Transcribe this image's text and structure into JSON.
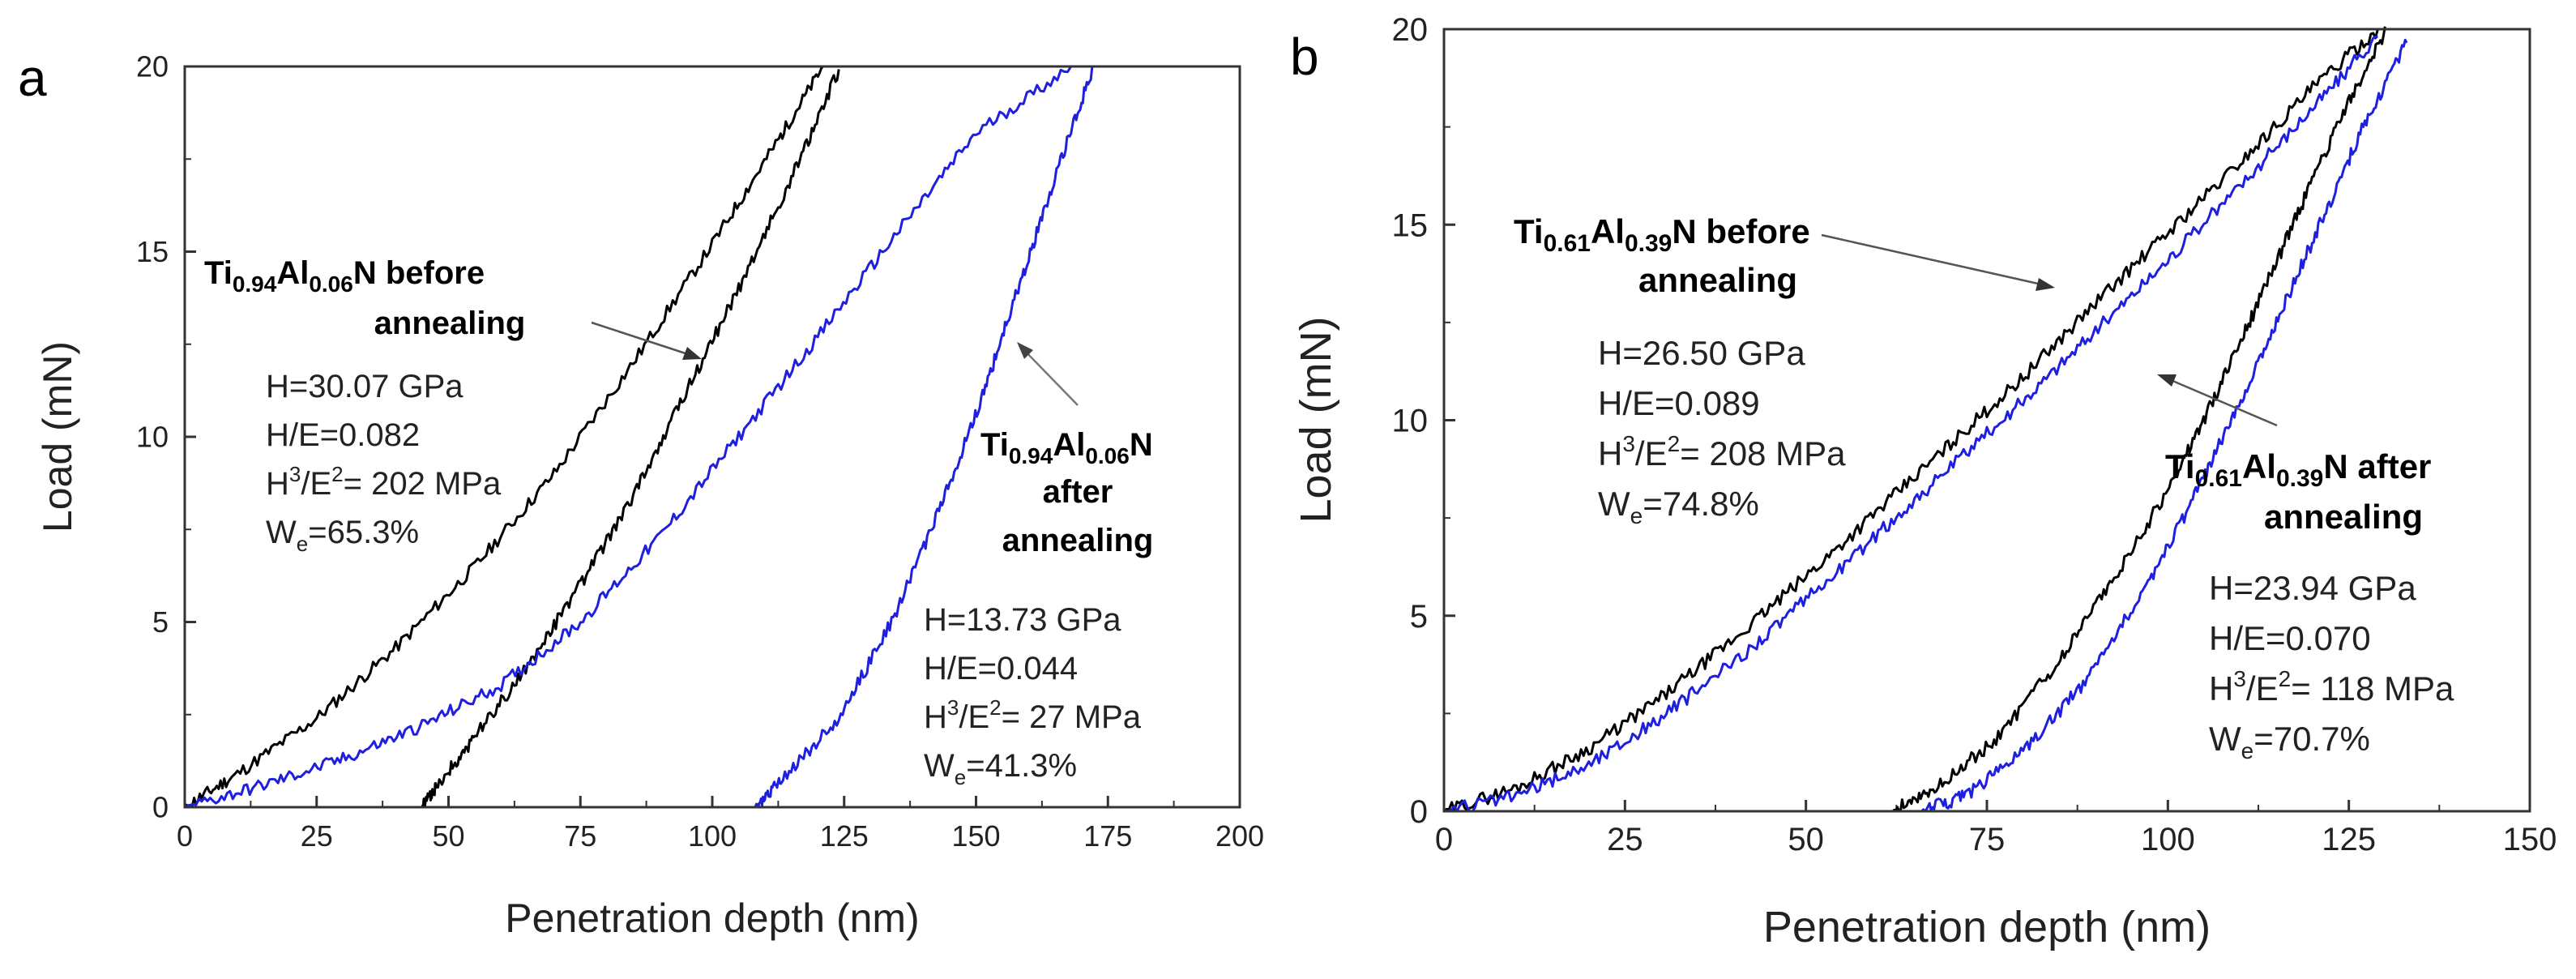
{
  "figure": {
    "panels": [
      {
        "panel_label": "a",
        "xlabel": "Penetration depth (nm)",
        "ylabel": "Load (mN)"
      },
      {
        "panel_label": "b",
        "xlabel": "Penetration depth (nm)",
        "ylabel": "Load (mN)"
      }
    ]
  },
  "chart_data": [
    {
      "type": "line",
      "panel_label": "a",
      "xlabel": "Penetration depth (nm)",
      "ylabel": "Load (mN)",
      "xlim": [
        0,
        200
      ],
      "ylim": [
        0,
        20
      ],
      "xticks": [
        0,
        25,
        50,
        75,
        100,
        125,
        150,
        175,
        200
      ],
      "yticks": [
        0,
        5,
        10,
        15,
        20
      ],
      "series": [
        {
          "name": "Ti0.94Al0.06N before annealing",
          "color": "#000000",
          "loading": [
            [
              0,
              0
            ],
            [
              10,
              0.9
            ],
            [
              25,
              2.4
            ],
            [
              40,
              4.3
            ],
            [
              55,
              6.5
            ],
            [
              70,
              9.0
            ],
            [
              85,
              12.0
            ],
            [
              100,
              15.2
            ],
            [
              112,
              17.9
            ],
            [
              121,
              20.0
            ]
          ],
          "unloading": [
            [
              124,
              19.9
            ],
            [
              115,
              17.0
            ],
            [
              105,
              14.0
            ],
            [
              95,
              11.2
            ],
            [
              85,
              8.4
            ],
            [
              75,
              6.0
            ],
            [
              65,
              3.8
            ],
            [
              55,
              1.9
            ],
            [
              48,
              0.6
            ],
            [
              45,
              0.0
            ]
          ],
          "tail": [
            [
              45,
              0.0
            ],
            [
              40,
              0.0
            ]
          ]
        },
        {
          "name": "Ti0.94Al0.06N after annealing",
          "color": "#1f1fe0",
          "loading": [
            [
              0,
              0
            ],
            [
              15,
              0.6
            ],
            [
              30,
              1.3
            ],
            [
              45,
              2.2
            ],
            [
              60,
              3.3
            ],
            [
              75,
              5.0
            ],
            [
              90,
              7.3
            ],
            [
              105,
              10.0
            ],
            [
              120,
              12.7
            ],
            [
              135,
              15.5
            ],
            [
              150,
              18.2
            ],
            [
              168,
              20.0
            ]
          ],
          "unloading": [
            [
              172,
              19.9
            ],
            [
              165,
              17.0
            ],
            [
              158,
              14.0
            ],
            [
              151,
              11.0
            ],
            [
              143,
              8.0
            ],
            [
              134,
              5.0
            ],
            [
              124,
              2.4
            ],
            [
              113,
              0.7
            ],
            [
              108,
              0.0
            ]
          ],
          "tail": [
            [
              108,
              0.0
            ],
            [
              103,
              0.0
            ]
          ]
        }
      ],
      "annotations": [
        {
          "title_parts": [
            {
              "text": "Ti",
              "sub": false
            },
            {
              "text": "0.94",
              "sub": true
            },
            {
              "text": "Al",
              "sub": false
            },
            {
              "text": "0.06",
              "sub": true
            },
            {
              "text": "N before",
              "sub": false
            }
          ],
          "title_line2": "annealing",
          "H": "H=30.07 GPa",
          "HE": "H/E=0.082",
          "H3_prefix": "H",
          "H3_sup1": "3",
          "H3_mid": "/E",
          "H3_sup2": "2",
          "H3_value": "= 202 MPa",
          "We_prefix": "W",
          "We_sub": "e",
          "We_value": "=65.3%"
        },
        {
          "title_parts": [
            {
              "text": "Ti",
              "sub": false
            },
            {
              "text": "0.94",
              "sub": true
            },
            {
              "text": "Al",
              "sub": false
            },
            {
              "text": "0.06",
              "sub": true
            },
            {
              "text": "N",
              "sub": false
            }
          ],
          "title_line2": "after",
          "title_line3": "annealing",
          "H": "H=13.73 GPa",
          "HE": "H/E=0.044",
          "H3_prefix": "H",
          "H3_sup1": "3",
          "H3_mid": "/E",
          "H3_sup2": "2",
          "H3_value": "= 27 MPa",
          "We_prefix": "W",
          "We_sub": "e",
          "We_value": "=41.3%"
        }
      ]
    },
    {
      "type": "line",
      "panel_label": "b",
      "xlabel": "Penetration depth (nm)",
      "ylabel": "Load (mN)",
      "xlim": [
        0,
        150
      ],
      "ylim": [
        0,
        20
      ],
      "xticks": [
        0,
        25,
        50,
        75,
        100,
        125,
        150
      ],
      "yticks": [
        0,
        5,
        10,
        15,
        20
      ],
      "series": [
        {
          "name": "Ti0.61Al0.39N before annealing",
          "color": "#000000",
          "loading": [
            [
              0,
              0
            ],
            [
              10,
              0.6
            ],
            [
              20,
              1.6
            ],
            [
              30,
              2.9
            ],
            [
              40,
              4.4
            ],
            [
              50,
              6.0
            ],
            [
              60,
              7.7
            ],
            [
              70,
              9.4
            ],
            [
              80,
              11.1
            ],
            [
              90,
              13.0
            ],
            [
              100,
              14.8
            ],
            [
              110,
              16.6
            ],
            [
              120,
              18.5
            ],
            [
              129,
              20.0
            ]
          ],
          "unloading": [
            [
              130,
              19.9
            ],
            [
              124,
              17.8
            ],
            [
              118,
              15.3
            ],
            [
              112,
              12.8
            ],
            [
              106,
              10.4
            ],
            [
              100,
              8.2
            ],
            [
              92,
              5.8
            ],
            [
              84,
              3.6
            ],
            [
              76,
              1.8
            ],
            [
              68,
              0.6
            ],
            [
              62,
              0.0
            ]
          ],
          "tail": [
            [
              62,
              0.0
            ],
            [
              32,
              0.0
            ]
          ]
        },
        {
          "name": "Ti0.61Al0.39N after annealing",
          "color": "#1f1fe0",
          "loading": [
            [
              0,
              0
            ],
            [
              10,
              0.4
            ],
            [
              20,
              1.2
            ],
            [
              30,
              2.4
            ],
            [
              40,
              3.8
            ],
            [
              50,
              5.4
            ],
            [
              60,
              7.1
            ],
            [
              70,
              8.8
            ],
            [
              80,
              10.5
            ],
            [
              90,
              12.3
            ],
            [
              100,
              14.1
            ],
            [
              110,
              16.0
            ],
            [
              120,
              18.0
            ],
            [
              129,
              19.8
            ]
          ],
          "unloading": [
            [
              133,
              19.7
            ],
            [
              127,
              17.5
            ],
            [
              121,
              15.0
            ],
            [
              115,
              12.5
            ],
            [
              109,
              10.1
            ],
            [
              103,
              7.8
            ],
            [
              96,
              5.4
            ],
            [
              88,
              3.2
            ],
            [
              80,
              1.5
            ],
            [
              72,
              0.4
            ],
            [
              66,
              0.0
            ]
          ],
          "tail": [
            [
              66,
              0.0
            ],
            [
              37,
              0.0
            ]
          ]
        }
      ],
      "annotations": [
        {
          "title_parts": [
            {
              "text": "Ti",
              "sub": false
            },
            {
              "text": "0.61",
              "sub": true
            },
            {
              "text": "Al",
              "sub": false
            },
            {
              "text": "0.39",
              "sub": true
            },
            {
              "text": "N before",
              "sub": false
            }
          ],
          "title_line2": "annealing",
          "H": "H=26.50 GPa",
          "HE": "H/E=0.089",
          "H3_prefix": "H",
          "H3_sup1": "3",
          "H3_mid": "/E",
          "H3_sup2": "2",
          "H3_value": "= 208 MPa",
          "We_prefix": "W",
          "We_sub": "e",
          "We_value": "=74.8%"
        },
        {
          "title_parts": [
            {
              "text": "Ti",
              "sub": false
            },
            {
              "text": "0.61",
              "sub": true
            },
            {
              "text": "Al",
              "sub": false
            },
            {
              "text": "0.39",
              "sub": true
            },
            {
              "text": "N after",
              "sub": false
            }
          ],
          "title_line2": "annealing",
          "H": "H=23.94 GPa",
          "HE": "H/E=0.070",
          "H3_prefix": "H",
          "H3_sup1": "3",
          "H3_mid": "/E",
          "H3_sup2": "2",
          "H3_value": "= 118 MPa",
          "We_prefix": "W",
          "We_sub": "e",
          "We_value": "=70.7%"
        }
      ]
    }
  ]
}
